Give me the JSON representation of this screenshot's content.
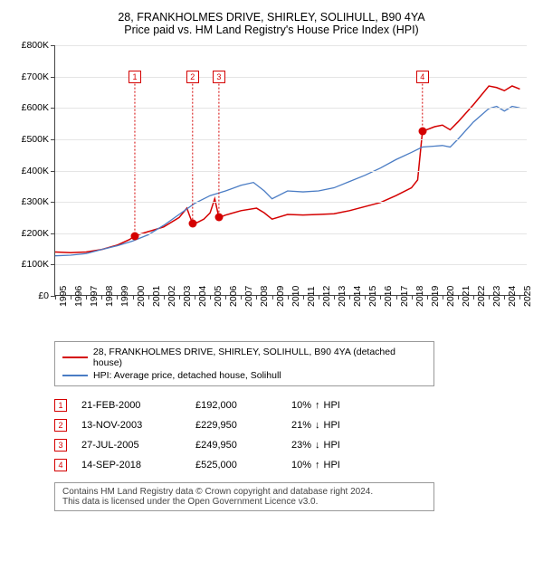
{
  "title": {
    "line1": "28, FRANKHOLMES DRIVE, SHIRLEY, SOLIHULL, B90 4YA",
    "line2": "Price paid vs. HM Land Registry's House Price Index (HPI)"
  },
  "chart": {
    "type": "line",
    "background_color": "#ffffff",
    "grid_color": "#e5e5e5",
    "axis_color": "#444444",
    "label_fontsize": 10.5,
    "ylim": [
      0,
      800000
    ],
    "ytick_step": 100000,
    "yticks": [
      {
        "v": 0,
        "label": "£0"
      },
      {
        "v": 100000,
        "label": "£100K"
      },
      {
        "v": 200000,
        "label": "£200K"
      },
      {
        "v": 300000,
        "label": "£300K"
      },
      {
        "v": 400000,
        "label": "£400K"
      },
      {
        "v": 500000,
        "label": "£500K"
      },
      {
        "v": 600000,
        "label": "£600K"
      },
      {
        "v": 700000,
        "label": "£700K"
      },
      {
        "v": 800000,
        "label": "£800K"
      }
    ],
    "xlim": [
      1995,
      2025.5
    ],
    "xticks": [
      1995,
      1996,
      1997,
      1998,
      1999,
      2000,
      2001,
      2002,
      2003,
      2004,
      2005,
      2006,
      2007,
      2008,
      2009,
      2010,
      2011,
      2012,
      2013,
      2014,
      2015,
      2016,
      2017,
      2018,
      2019,
      2020,
      2021,
      2022,
      2023,
      2024,
      2025
    ],
    "series": [
      {
        "id": "price_paid",
        "label": "28, FRANKHOLMES DRIVE, SHIRLEY, SOLIHULL, B90 4YA (detached house)",
        "color": "#d40000",
        "line_width": 1.5,
        "data": [
          [
            1995.0,
            140000
          ],
          [
            1996.0,
            138000
          ],
          [
            1997.0,
            140000
          ],
          [
            1998.0,
            148000
          ],
          [
            1999.0,
            162000
          ],
          [
            1999.8,
            180000
          ],
          [
            2000.14,
            192000
          ],
          [
            2001.0,
            205000
          ],
          [
            2002.0,
            220000
          ],
          [
            2003.0,
            250000
          ],
          [
            2003.5,
            280000
          ],
          [
            2003.87,
            229950
          ],
          [
            2004.2,
            235000
          ],
          [
            2004.6,
            245000
          ],
          [
            2005.0,
            265000
          ],
          [
            2005.3,
            310000
          ],
          [
            2005.57,
            249950
          ],
          [
            2006.0,
            258000
          ],
          [
            2007.0,
            272000
          ],
          [
            2008.0,
            280000
          ],
          [
            2008.5,
            265000
          ],
          [
            2009.0,
            245000
          ],
          [
            2010.0,
            260000
          ],
          [
            2011.0,
            258000
          ],
          [
            2012.0,
            260000
          ],
          [
            2013.0,
            262000
          ],
          [
            2014.0,
            272000
          ],
          [
            2015.0,
            285000
          ],
          [
            2016.0,
            298000
          ],
          [
            2017.0,
            320000
          ],
          [
            2018.0,
            345000
          ],
          [
            2018.4,
            370000
          ],
          [
            2018.71,
            525000
          ],
          [
            2019.5,
            540000
          ],
          [
            2020.0,
            545000
          ],
          [
            2020.5,
            530000
          ],
          [
            2021.0,
            555000
          ],
          [
            2022.0,
            610000
          ],
          [
            2022.5,
            640000
          ],
          [
            2023.0,
            670000
          ],
          [
            2023.5,
            665000
          ],
          [
            2024.0,
            655000
          ],
          [
            2024.5,
            670000
          ],
          [
            2025.0,
            660000
          ]
        ]
      },
      {
        "id": "hpi",
        "label": "HPI: Average price, detached house, Solihull",
        "color": "#4a7cc4",
        "line_width": 1.3,
        "data": [
          [
            1995.0,
            128000
          ],
          [
            1996.0,
            130000
          ],
          [
            1997.0,
            135000
          ],
          [
            1998.0,
            148000
          ],
          [
            1999.0,
            160000
          ],
          [
            2000.0,
            175000
          ],
          [
            2001.0,
            195000
          ],
          [
            2002.0,
            225000
          ],
          [
            2003.0,
            260000
          ],
          [
            2004.0,
            295000
          ],
          [
            2005.0,
            320000
          ],
          [
            2006.0,
            335000
          ],
          [
            2007.0,
            353000
          ],
          [
            2007.8,
            362000
          ],
          [
            2008.5,
            335000
          ],
          [
            2009.0,
            310000
          ],
          [
            2010.0,
            335000
          ],
          [
            2011.0,
            332000
          ],
          [
            2012.0,
            335000
          ],
          [
            2013.0,
            345000
          ],
          [
            2014.0,
            365000
          ],
          [
            2015.0,
            385000
          ],
          [
            2016.0,
            408000
          ],
          [
            2017.0,
            435000
          ],
          [
            2018.0,
            458000
          ],
          [
            2018.7,
            475000
          ],
          [
            2019.5,
            478000
          ],
          [
            2020.0,
            480000
          ],
          [
            2020.5,
            475000
          ],
          [
            2021.0,
            500000
          ],
          [
            2022.0,
            555000
          ],
          [
            2023.0,
            598000
          ],
          [
            2023.5,
            605000
          ],
          [
            2024.0,
            590000
          ],
          [
            2024.5,
            605000
          ],
          [
            2025.0,
            600000
          ]
        ]
      }
    ],
    "sale_markers": [
      {
        "n": "1",
        "x": 2000.14,
        "y": 192000,
        "box_y": 700000
      },
      {
        "n": "2",
        "x": 2003.87,
        "y": 229950,
        "box_y": 700000
      },
      {
        "n": "3",
        "x": 2005.57,
        "y": 249950,
        "box_y": 700000
      },
      {
        "n": "4",
        "x": 2018.71,
        "y": 525000,
        "box_y": 700000
      }
    ],
    "marker_color": "#d40000",
    "marker_dot_radius": 4.5
  },
  "legend": {
    "items": [
      {
        "color": "#d40000",
        "label": "28, FRANKHOLMES DRIVE, SHIRLEY, SOLIHULL, B90 4YA (detached house)"
      },
      {
        "color": "#4a7cc4",
        "label": "HPI: Average price, detached house, Solihull"
      }
    ]
  },
  "sales_table": {
    "marker_color": "#d40000",
    "rows": [
      {
        "n": "1",
        "date": "21-FEB-2000",
        "price": "£192,000",
        "diff": "10%",
        "dir": "up",
        "suffix": "HPI"
      },
      {
        "n": "2",
        "date": "13-NOV-2003",
        "price": "£229,950",
        "diff": "21%",
        "dir": "down",
        "suffix": "HPI"
      },
      {
        "n": "3",
        "date": "27-JUL-2005",
        "price": "£249,950",
        "diff": "23%",
        "dir": "down",
        "suffix": "HPI"
      },
      {
        "n": "4",
        "date": "14-SEP-2018",
        "price": "£525,000",
        "diff": "10%",
        "dir": "up",
        "suffix": "HPI"
      }
    ]
  },
  "footer": {
    "line1": "Contains HM Land Registry data © Crown copyright and database right 2024.",
    "line2": "This data is licensed under the Open Government Licence v3.0."
  }
}
